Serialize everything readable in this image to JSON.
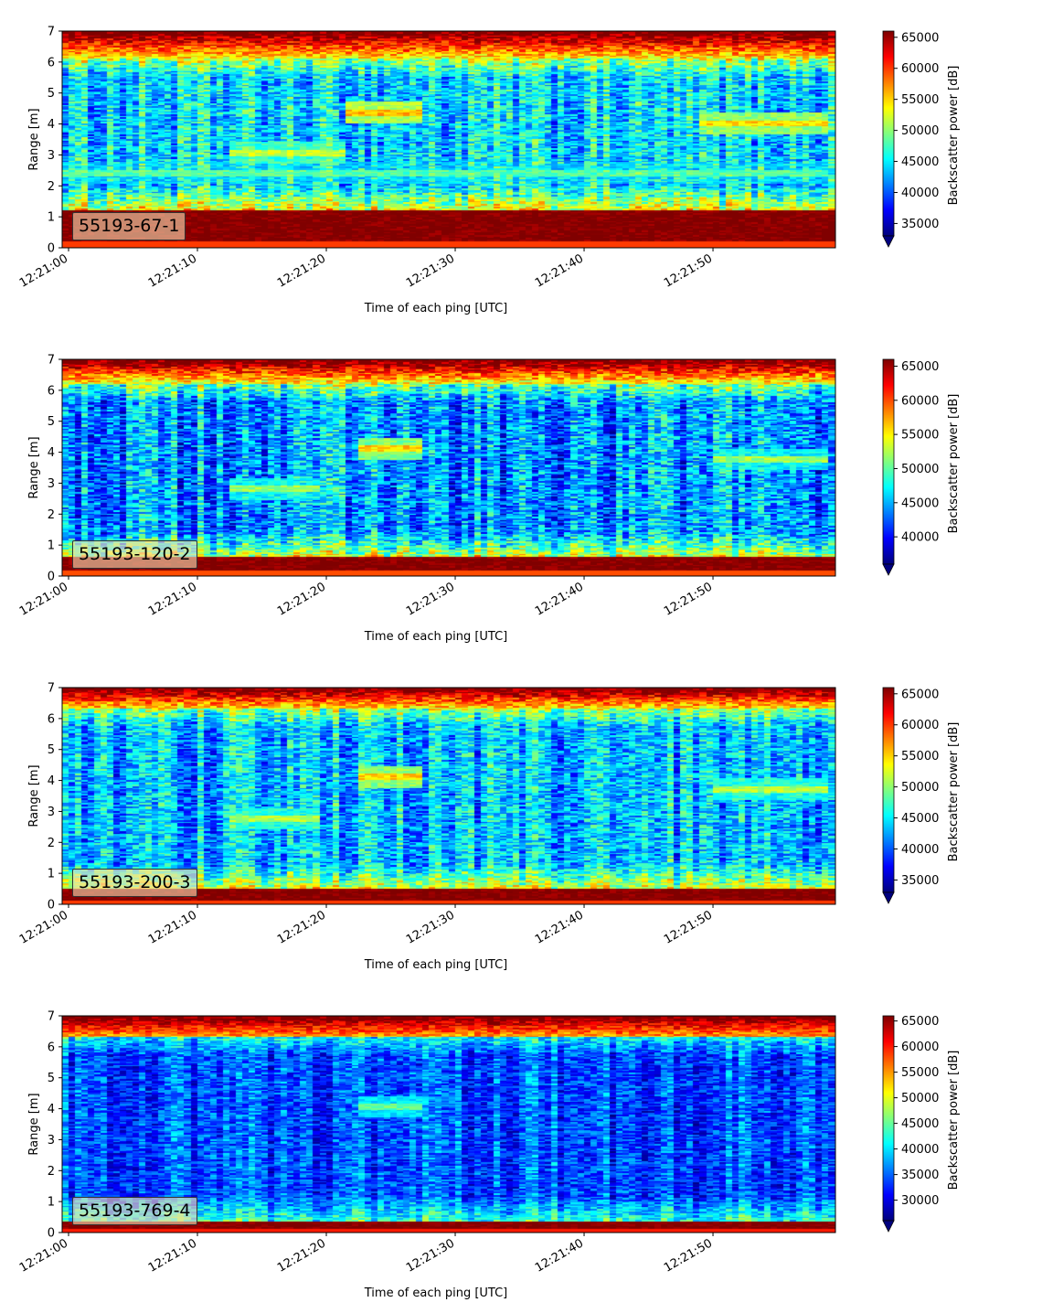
{
  "chart_data": [
    {
      "type": "heatmap",
      "label": "55193-67-1",
      "xlabel": "Time of each ping [UTC]",
      "ylabel": "Range [m]",
      "colorbar_label": "Backscatter power [dB]",
      "colormap": "jet",
      "colorbar_extend": "min",
      "x_ticks": [
        "12:21:00",
        "12:21:10",
        "12:21:20",
        "12:21:30",
        "12:21:40",
        "12:21:50"
      ],
      "x_range_seconds": [
        0,
        59.5
      ],
      "y_ticks": [
        0,
        1,
        2,
        3,
        4,
        5,
        6,
        7
      ],
      "ylim": [
        0,
        7
      ],
      "clim": [
        33000,
        66000
      ],
      "colorbar_ticks": [
        35000,
        40000,
        45000,
        50000,
        55000,
        60000,
        65000
      ],
      "features": {
        "bottom_band_m": [
          0.2,
          1.2
        ],
        "top_band_m": [
          6.1,
          7.0
        ],
        "layers": [
          {
            "t_start": 13,
            "t_end": 22,
            "range_m": 3.05,
            "level": 52000
          },
          {
            "t_start": 22,
            "t_end": 28,
            "range_m": 4.35,
            "level": 56000
          },
          {
            "t_start": 49,
            "t_end": 59,
            "range_m": 4.0,
            "level": 55000
          },
          {
            "t_start": 0,
            "t_end": 59,
            "range_m": 2.4,
            "level": 48000
          }
        ],
        "background_level": 44000
      }
    },
    {
      "type": "heatmap",
      "label": "55193-120-2",
      "xlabel": "Time of each ping [UTC]",
      "ylabel": "Range [m]",
      "colorbar_label": "Backscatter power [dB]",
      "colormap": "jet",
      "colorbar_extend": "min",
      "x_ticks": [
        "12:21:00",
        "12:21:10",
        "12:21:20",
        "12:21:30",
        "12:21:40",
        "12:21:50"
      ],
      "x_range_seconds": [
        0,
        59.5
      ],
      "y_ticks": [
        0,
        1,
        2,
        3,
        4,
        5,
        6,
        7
      ],
      "ylim": [
        0,
        7
      ],
      "clim": [
        36000,
        66000
      ],
      "colorbar_ticks": [
        40000,
        45000,
        50000,
        55000,
        60000,
        65000
      ],
      "features": {
        "bottom_band_m": [
          0.15,
          0.6
        ],
        "top_band_m": [
          6.2,
          7.0
        ],
        "layers": [
          {
            "t_start": 13,
            "t_end": 20,
            "range_m": 2.8,
            "level": 52000
          },
          {
            "t_start": 23,
            "t_end": 28,
            "range_m": 4.1,
            "level": 56000
          },
          {
            "t_start": 50,
            "t_end": 59,
            "range_m": 3.75,
            "level": 52000
          }
        ],
        "background_level": 44000
      }
    },
    {
      "type": "heatmap",
      "label": "55193-200-3",
      "xlabel": "Time of each ping [UTC]",
      "ylabel": "Range [m]",
      "colorbar_label": "Backscatter power [dB]",
      "colormap": "jet",
      "colorbar_extend": "min",
      "x_ticks": [
        "12:21:00",
        "12:21:10",
        "12:21:20",
        "12:21:30",
        "12:21:40",
        "12:21:50"
      ],
      "x_range_seconds": [
        0,
        59.5
      ],
      "y_ticks": [
        0,
        1,
        2,
        3,
        4,
        5,
        6,
        7
      ],
      "ylim": [
        0,
        7
      ],
      "clim": [
        33000,
        66000
      ],
      "colorbar_ticks": [
        35000,
        40000,
        45000,
        50000,
        55000,
        60000,
        65000
      ],
      "features": {
        "bottom_band_m": [
          0.1,
          0.5
        ],
        "top_band_m": [
          6.3,
          7.0
        ],
        "layers": [
          {
            "t_start": 13,
            "t_end": 20,
            "range_m": 2.75,
            "level": 51000
          },
          {
            "t_start": 23,
            "t_end": 28,
            "range_m": 4.1,
            "level": 55000
          },
          {
            "t_start": 50,
            "t_end": 59,
            "range_m": 3.7,
            "level": 51000
          }
        ],
        "background_level": 43000
      }
    },
    {
      "type": "heatmap",
      "label": "55193-769-4",
      "xlabel": "Time of each ping [UTC]",
      "ylabel": "Range [m]",
      "colorbar_label": "Backscatter power [dB]",
      "colormap": "jet",
      "colorbar_extend": "min",
      "x_ticks": [
        "12:21:00",
        "12:21:10",
        "12:21:20",
        "12:21:30",
        "12:21:40",
        "12:21:50"
      ],
      "x_range_seconds": [
        0,
        59.5
      ],
      "y_ticks": [
        0,
        1,
        2,
        3,
        4,
        5,
        6,
        7
      ],
      "ylim": [
        0,
        7
      ],
      "clim": [
        26000,
        66000
      ],
      "colorbar_ticks": [
        30000,
        35000,
        40000,
        45000,
        50000,
        55000,
        60000,
        65000
      ],
      "features": {
        "bottom_band_m": [
          0.1,
          0.35
        ],
        "top_band_m": [
          6.3,
          7.0
        ],
        "layers": [
          {
            "t_start": 23,
            "t_end": 28,
            "range_m": 4.05,
            "level": 45000
          }
        ],
        "background_level": 34000
      }
    }
  ]
}
